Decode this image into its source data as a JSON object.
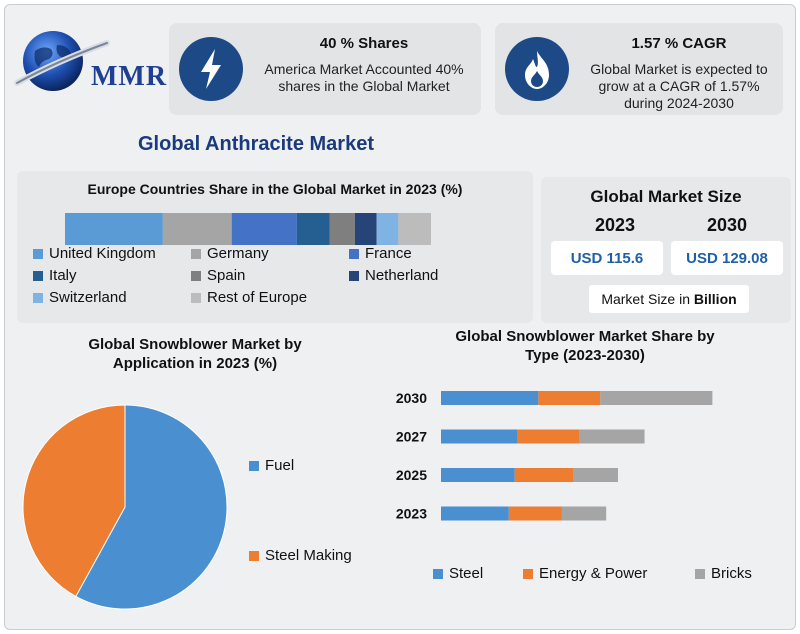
{
  "logo": {
    "text": "MMR"
  },
  "card1": {
    "title": "40 % Shares",
    "text_line1": "America Market Accounted 40%",
    "text_line2": "shares in the Global Market",
    "icon": "lightning-icon"
  },
  "card2": {
    "title": "1.57 % CAGR",
    "text_line1": "Global Market is expected to",
    "text_line2": "grow at a CAGR of 1.57%",
    "text_line3": "during 2024-2030",
    "icon": "flame-icon"
  },
  "main_title": "Global Anthracite Market",
  "market_size": {
    "title": "Global Market Size",
    "year1": "2023",
    "year2": "2030",
    "value1": "USD 115.6",
    "value2": "USD 129.08",
    "unit_prefix": "Market Size in ",
    "unit_bold": "Billion"
  },
  "colors": {
    "accent": "#1d4a86",
    "steel": "#4a90d0",
    "energy": "#ed7d31",
    "bricks": "#a5a5a5"
  },
  "chart_data": [
    {
      "type": "bar",
      "title": "Europe Countries Share in the Global Market in 2023 (%)",
      "stacked": true,
      "orientation": "horizontal",
      "series": [
        {
          "name": "United Kingdom",
          "values": [
            27
          ],
          "color": "#5b9bd5"
        },
        {
          "name": "Germany",
          "values": [
            19
          ],
          "color": "#a5a5a5"
        },
        {
          "name": "France",
          "values": [
            18
          ],
          "color": "#4472c4"
        },
        {
          "name": "Italy",
          "values": [
            9
          ],
          "color": "#255e91"
        },
        {
          "name": "Spain",
          "values": [
            7
          ],
          "color": "#7f7f7f"
        },
        {
          "name": "Netherland",
          "values": [
            6
          ],
          "color": "#264478"
        },
        {
          "name": "Switzerland",
          "values": [
            6
          ],
          "color": "#7fb3e3"
        },
        {
          "name": "Rest of Europe",
          "values": [
            9
          ],
          "color": "#bcbcbc"
        }
      ]
    },
    {
      "type": "pie",
      "title_line1": "Global Snowblower Market by",
      "title_line2": "Application in 2023 (%)",
      "slices": [
        {
          "name": "Fuel",
          "value": 58,
          "color": "#4a90d0"
        },
        {
          "name": "Steel Making",
          "value": 42,
          "color": "#ed7d31"
        }
      ]
    },
    {
      "type": "bar",
      "title_line1": "Global Snowblower Market Share by",
      "title_line2": "Type (2023-2030)",
      "stacked": true,
      "orientation": "horizontal",
      "categories": [
        "2030",
        "2027",
        "2025",
        "2023"
      ],
      "series": [
        {
          "name": "Steel",
          "values": [
            33,
            26,
            25,
            23
          ],
          "color": "#4a90d0"
        },
        {
          "name": "Energy & Power",
          "values": [
            21,
            21,
            20,
            18
          ],
          "color": "#ed7d31"
        },
        {
          "name": "Bricks",
          "values": [
            38,
            22,
            15,
            15
          ],
          "color": "#a5a5a5"
        }
      ]
    }
  ]
}
